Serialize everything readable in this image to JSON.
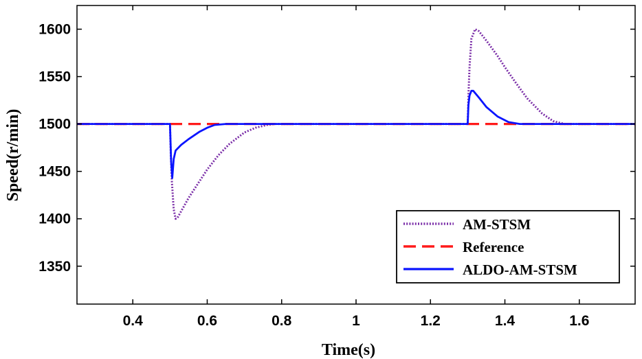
{
  "chart_data": {
    "type": "line",
    "title": "",
    "xlabel": "Time(s)",
    "ylabel": "Speed(r/min)",
    "xlim": [
      0.25,
      1.75
    ],
    "ylim": [
      1310,
      1625
    ],
    "xticks": [
      0.4,
      0.6,
      0.8,
      1,
      1.2,
      1.4,
      1.6
    ],
    "yticks": [
      1350,
      1400,
      1450,
      1500,
      1550,
      1600
    ],
    "legend_position": "bottom-right",
    "series": [
      {
        "name": "AM-STSM",
        "style": "dotted",
        "color": "#7b2fa8",
        "x": [
          0.25,
          0.4999,
          0.5,
          0.502,
          0.505,
          0.51,
          0.515,
          0.52,
          0.53,
          0.55,
          0.58,
          0.6,
          0.63,
          0.66,
          0.7,
          0.73,
          0.76,
          0.78,
          0.8,
          1.0,
          1.2,
          1.2999,
          1.3,
          1.302,
          1.305,
          1.31,
          1.32,
          1.33,
          1.35,
          1.38,
          1.4,
          1.43,
          1.46,
          1.5,
          1.53,
          1.56,
          1.6,
          1.75
        ],
        "y": [
          1500,
          1500,
          1500,
          1470,
          1440,
          1410,
          1400,
          1401,
          1408,
          1422,
          1440,
          1452,
          1467,
          1479,
          1491,
          1496,
          1499,
          1500,
          1500,
          1500,
          1500,
          1500,
          1500,
          1530,
          1560,
          1590,
          1600,
          1598,
          1588,
          1572,
          1560,
          1543,
          1527,
          1511,
          1503,
          1500,
          1500,
          1500
        ]
      },
      {
        "name": "Reference",
        "style": "dashed",
        "color": "#ff1a1a",
        "x": [
          0.25,
          1.75
        ],
        "y": [
          1500,
          1500
        ]
      },
      {
        "name": "ALDO-AM-STSM",
        "style": "solid",
        "color": "#0a14ff",
        "x": [
          0.25,
          0.4999,
          0.5,
          0.503,
          0.506,
          0.51,
          0.515,
          0.53,
          0.55,
          0.58,
          0.6,
          0.62,
          0.65,
          1.0,
          1.2999,
          1.3,
          1.302,
          1.305,
          1.31,
          1.315,
          1.33,
          1.35,
          1.38,
          1.41,
          1.44,
          1.46,
          1.75
        ],
        "y": [
          1500,
          1500,
          1500,
          1460,
          1443,
          1463,
          1472,
          1478,
          1484,
          1492,
          1496,
          1499,
          1500,
          1500,
          1500,
          1500,
          1520,
          1530,
          1535,
          1535,
          1528,
          1518,
          1508,
          1502,
          1500,
          1500,
          1500
        ]
      }
    ]
  }
}
